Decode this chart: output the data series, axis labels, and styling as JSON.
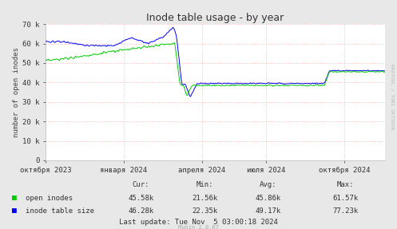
{
  "title": "Inode table usage - by year",
  "ylabel": "number of open inodes",
  "bg_color": "#e8e8e8",
  "plot_bg_color": "#ffffff",
  "grid_color": "#ffaaaa",
  "ylim": [
    0,
    70000
  ],
  "yticks": [
    0,
    10000,
    20000,
    30000,
    40000,
    50000,
    60000,
    70000
  ],
  "ytick_labels": [
    "0",
    "10 k",
    "20 k",
    "30 k",
    "40 k",
    "50 k",
    "60 k",
    "70 k"
  ],
  "xtick_positions": [
    0.0,
    0.23,
    0.46,
    0.65,
    0.88
  ],
  "xtick_labels": [
    "октября 2023",
    "января 2024",
    "апреля 2024",
    "июля 2024",
    "октября 2024"
  ],
  "legend_entries": [
    "open inodes",
    "inode table size"
  ],
  "open_inodes_color": "#00cc00",
  "inode_table_color": "#0000ff",
  "open_inodes_stats": [
    "45.58k",
    "21.56k",
    "45.86k",
    "61.57k"
  ],
  "inode_table_stats": [
    "46.28k",
    "22.35k",
    "49.17k",
    "77.23k"
  ],
  "last_update": "Last update: Tue Nov  5 03:00:18 2024",
  "munin_version": "Munin 2.0.67",
  "rrdtool_label": "RRDTOOL / TOBI OETIKER"
}
